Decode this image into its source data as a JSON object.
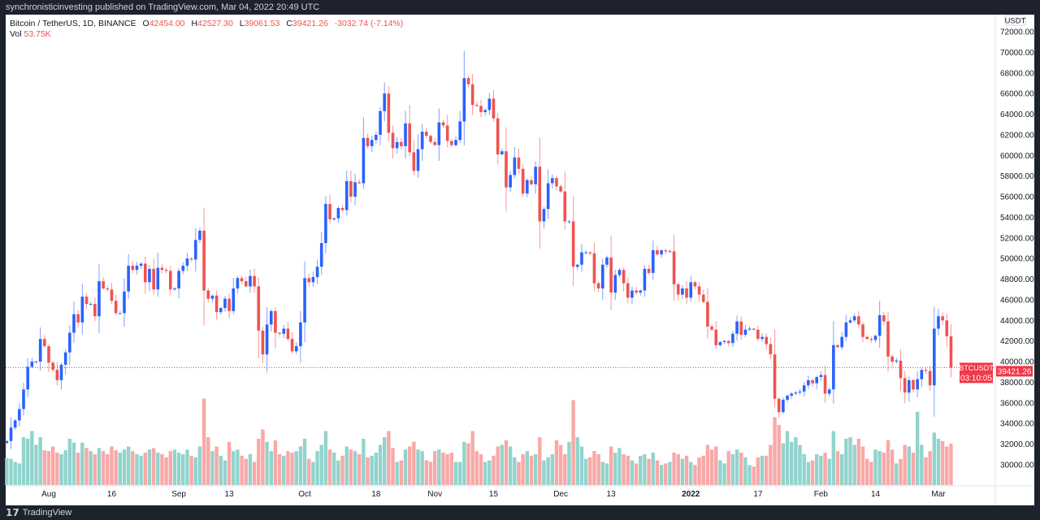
{
  "published": "synchronisticinvesting published on TradingView.com, Mar 04, 2022 20:49 UTC",
  "legend": {
    "symbol": "Bitcoin / TetherUS, 1D, BINANCE",
    "o_label": "O",
    "o": "42454.00",
    "h_label": "H",
    "h": "42527.30",
    "l_label": "L",
    "l": "39061.53",
    "c_label": "C",
    "c": "39421.26",
    "change": "-3032.74 (-7.14%)",
    "vol_label": "Vol",
    "vol": "53.75K"
  },
  "footer": {
    "logo_text": "TradingView"
  },
  "colors": {
    "up": "#2962ff",
    "down": "#ef5350",
    "vol_up": "#92d3cd",
    "vol_down": "#f8a9a7",
    "last_price": "#f23645"
  },
  "chart_data": {
    "type": "candlestick",
    "symbol_label": "BTCUSDT",
    "currency": "USDT",
    "last_price": "39421.26",
    "countdown": "03:10:05",
    "ylim": [
      28000,
      73000
    ],
    "y_ticks": [
      30000,
      32000,
      34000,
      36000,
      38000,
      40000,
      42000,
      44000,
      46000,
      48000,
      50000,
      52000,
      54000,
      56000,
      58000,
      60000,
      62000,
      64000,
      66000,
      68000,
      70000,
      72000
    ],
    "start_date": "2021-07-22",
    "x_ticks": [
      {
        "label": "Aug",
        "date": "2021-08-01"
      },
      {
        "label": "16",
        "date": "2021-08-16"
      },
      {
        "label": "Sep",
        "date": "2021-09-01"
      },
      {
        "label": "13",
        "date": "2021-09-13"
      },
      {
        "label": "Oct",
        "date": "2021-10-01"
      },
      {
        "label": "18",
        "date": "2021-10-18"
      },
      {
        "label": "Nov",
        "date": "2021-11-01"
      },
      {
        "label": "15",
        "date": "2021-11-15"
      },
      {
        "label": "Dec",
        "date": "2021-12-01"
      },
      {
        "label": "13",
        "date": "2021-12-13"
      },
      {
        "label": "2022",
        "date": "2022-01-01"
      },
      {
        "label": "17",
        "date": "2022-01-17"
      },
      {
        "label": "Feb",
        "date": "2022-02-01"
      },
      {
        "label": "14",
        "date": "2022-02-14"
      },
      {
        "label": "Mar",
        "date": "2022-03-01"
      }
    ],
    "first_open": 32100,
    "closes": [
      32300,
      33600,
      34300,
      35400,
      37300,
      39500,
      40000,
      40000,
      42200,
      41500,
      39900,
      39200,
      38200,
      39700,
      40900,
      42800,
      44600,
      43800,
      46300,
      45600,
      45600,
      44400,
      47800,
      47100,
      47000,
      45900,
      44700,
      44700,
      46800,
      49300,
      48900,
      49300,
      49500,
      47700,
      49000,
      47000,
      49100,
      48900,
      48800,
      47000,
      47100,
      48800,
      49300,
      50000,
      49900,
      51800,
      52700,
      46900,
      46100,
      46400,
      44800,
      45200,
      46100,
      44900,
      47100,
      48100,
      47800,
      47300,
      48300,
      47300,
      43000,
      40700,
      43600,
      44900,
      42800,
      42700,
      43200,
      42200,
      41000,
      41500,
      43800,
      48100,
      47700,
      48200,
      49200,
      51500,
      55300,
      53800,
      53900,
      54900,
      54700,
      57500,
      56000,
      57400,
      57300,
      61700,
      60900,
      61500,
      62000,
      64300,
      66000,
      62200,
      60700,
      61300,
      60900,
      63100,
      60300,
      58500,
      60600,
      62300,
      61900,
      61300,
      61000,
      63200,
      62900,
      61400,
      61000,
      61500,
      63300,
      67500,
      66900,
      64900,
      64800,
      64200,
      64400,
      65500,
      63600,
      60100,
      60400,
      56900,
      58100,
      59800,
      58700,
      56300,
      57600,
      57200,
      58900,
      53600,
      54800,
      57300,
      57800,
      57000,
      56500,
      53600,
      53600,
      49200,
      49400,
      50600,
      50600,
      50500,
      47600,
      47100,
      49400,
      50100,
      46700,
      48400,
      48900,
      47600,
      46200,
      46900,
      46700,
      46900,
      49000,
      48600,
      50800,
      50400,
      50800,
      50700,
      50700,
      47500,
      46500,
      47100,
      46200,
      47700,
      47300,
      46500,
      45800,
      43400,
      43100,
      41600,
      41900,
      42000,
      41800,
      42700,
      43900,
      42600,
      43100,
      43200,
      43100,
      42200,
      42400,
      41700,
      40700,
      36400,
      35100,
      36300,
      36700,
      36900,
      37000,
      37100,
      37700,
      38200,
      37900,
      38500,
      38700,
      36900,
      37300,
      41600,
      41400,
      42400,
      43800,
      44000,
      44400,
      43600,
      42400,
      42200,
      42100,
      42500,
      44500,
      43900,
      40500,
      40000,
      40100,
      38400,
      37000,
      38200,
      37300,
      38300,
      39200,
      39100,
      37700,
      43200,
      44400,
      44000,
      42454,
      39421.26
    ],
    "volume_k": [
      35,
      34,
      30,
      28,
      62,
      60,
      70,
      52,
      62,
      45,
      44,
      50,
      42,
      40,
      45,
      60,
      55,
      42,
      55,
      48,
      44,
      40,
      48,
      44,
      40,
      50,
      45,
      42,
      46,
      50,
      44,
      40,
      38,
      42,
      46,
      48,
      42,
      40,
      36,
      44,
      46,
      42,
      40,
      46,
      38,
      36,
      50,
      112,
      62,
      44,
      50,
      38,
      32,
      56,
      44,
      46,
      38,
      34,
      40,
      30,
      60,
      72,
      56,
      44,
      58,
      40,
      38,
      44,
      42,
      44,
      50,
      60,
      34,
      30,
      44,
      52,
      70,
      46,
      42,
      32,
      38,
      50,
      46,
      44,
      40,
      60,
      36,
      38,
      42,
      52,
      62,
      70,
      48,
      30,
      32,
      46,
      50,
      56,
      46,
      44,
      32,
      30,
      44,
      46,
      42,
      40,
      42,
      30,
      30,
      56,
      54,
      70,
      44,
      40,
      30,
      32,
      38,
      50,
      52,
      58,
      50,
      36,
      30,
      40,
      44,
      38,
      40,
      62,
      32,
      36,
      40,
      58,
      52,
      40,
      56,
      110,
      62,
      50,
      34,
      36,
      44,
      40,
      30,
      28,
      50,
      42,
      48,
      40,
      38,
      32,
      28,
      38,
      40,
      34,
      42,
      32,
      26,
      28,
      30,
      42,
      40,
      34,
      38,
      30,
      26,
      36,
      38,
      52,
      46,
      50,
      32,
      28,
      44,
      40,
      46,
      42,
      36,
      26,
      24,
      36,
      38,
      38,
      52,
      88,
      78,
      54,
      70,
      56,
      62,
      52,
      40,
      30,
      32,
      40,
      38,
      42,
      34,
      70,
      44,
      40,
      60,
      62,
      52,
      60,
      50,
      34,
      30,
      46,
      44,
      42,
      58,
      46,
      28,
      34,
      52,
      50,
      42,
      95,
      52,
      36,
      44,
      68,
      60,
      57,
      50,
      53.75
    ]
  }
}
